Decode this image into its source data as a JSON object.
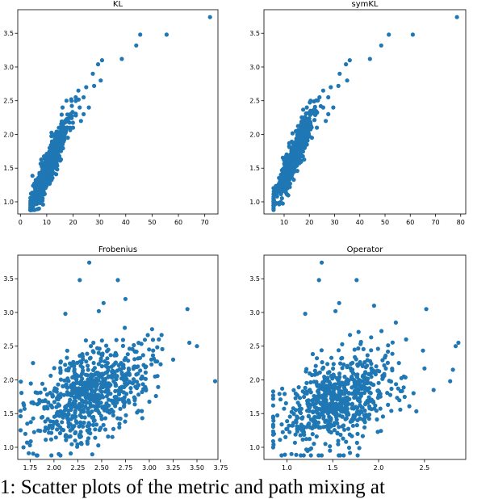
{
  "caption": "1: Scatter plots of the metric and path mixing at",
  "marker_color": "#1f77b4",
  "chart_data": [
    {
      "type": "scatter",
      "title": "KL",
      "xlim": [
        -1,
        75
      ],
      "ylim": [
        0.82,
        3.85
      ],
      "xticks": [
        0,
        10,
        20,
        30,
        40,
        50,
        60,
        70
      ],
      "yticks": [
        1.0,
        1.5,
        2.0,
        2.5,
        3.0,
        3.5
      ],
      "xtick_labels": [
        "0",
        "10",
        "20",
        "30",
        "40",
        "50",
        "60",
        "70"
      ],
      "ytick_labels": [
        "1.0",
        "1.5",
        "2.0",
        "2.5",
        "3.0",
        "3.5"
      ],
      "points": [
        [
          72.0,
          3.74
        ],
        [
          55.5,
          3.48
        ],
        [
          45.5,
          3.48
        ],
        [
          44.0,
          3.32
        ],
        [
          38.5,
          3.12
        ],
        [
          31.0,
          3.1
        ],
        [
          29.5,
          3.04
        ],
        [
          27.5,
          2.9
        ],
        [
          30.5,
          2.8
        ],
        [
          28.0,
          2.72
        ],
        [
          25.0,
          2.7
        ],
        [
          24.0,
          2.55
        ],
        [
          22.0,
          2.65
        ],
        [
          22.5,
          2.4
        ],
        [
          23.0,
          2.2
        ],
        [
          19.0,
          2.3
        ],
        [
          20.0,
          2.1
        ],
        [
          17.5,
          2.5
        ],
        [
          16.0,
          2.4
        ],
        [
          18.0,
          1.95
        ],
        [
          16.0,
          2.05
        ],
        [
          24.0,
          2.3
        ],
        [
          21.0,
          2.55
        ],
        [
          26.0,
          2.4
        ]
      ],
      "cloud": {
        "seed": 11,
        "n": 650,
        "x_mean": 11.0,
        "x_sd": 3.6,
        "x_min": 3.8,
        "x_max": 24.0,
        "slope": 0.085,
        "intercept": 0.62,
        "noise_sd": 0.13,
        "y_min": 0.88,
        "y_max": 2.75
      }
    },
    {
      "type": "scatter",
      "title": "symKL",
      "xlim": [
        2,
        82
      ],
      "ylim": [
        0.82,
        3.85
      ],
      "xticks": [
        10,
        20,
        30,
        40,
        50,
        60,
        70,
        80
      ],
      "yticks": [
        1.0,
        1.5,
        2.0,
        2.5,
        3.0,
        3.5
      ],
      "xtick_labels": [
        "10",
        "20",
        "30",
        "40",
        "50",
        "60",
        "70",
        "80"
      ],
      "ytick_labels": [
        "1.0",
        "1.5",
        "2.0",
        "2.5",
        "3.0",
        "3.5"
      ],
      "points": [
        [
          78.5,
          3.74
        ],
        [
          61.0,
          3.48
        ],
        [
          51.5,
          3.48
        ],
        [
          48.5,
          3.32
        ],
        [
          44.0,
          3.12
        ],
        [
          36.0,
          3.1
        ],
        [
          34.5,
          3.04
        ],
        [
          32.0,
          2.9
        ],
        [
          35.0,
          2.8
        ],
        [
          31.5,
          2.72
        ],
        [
          28.5,
          2.7
        ],
        [
          27.5,
          2.55
        ],
        [
          25.5,
          2.65
        ],
        [
          25.5,
          2.4
        ],
        [
          26.5,
          2.2
        ],
        [
          22.5,
          2.3
        ],
        [
          23.0,
          2.1
        ],
        [
          20.5,
          2.5
        ],
        [
          19.0,
          2.4
        ],
        [
          21.0,
          1.95
        ],
        [
          19.0,
          2.05
        ],
        [
          27.5,
          2.3
        ],
        [
          24.0,
          2.55
        ],
        [
          29.5,
          2.4
        ]
      ],
      "cloud": {
        "seed": 23,
        "n": 650,
        "x_mean": 13.5,
        "x_sd": 3.8,
        "x_min": 5.8,
        "x_max": 27.0,
        "slope": 0.08,
        "intercept": 0.55,
        "noise_sd": 0.13,
        "y_min": 0.88,
        "y_max": 2.75
      }
    },
    {
      "type": "scatter",
      "title": "Frobenius",
      "xlim": [
        1.62,
        3.72
      ],
      "ylim": [
        0.82,
        3.85
      ],
      "xticks": [
        1.75,
        2.0,
        2.25,
        2.5,
        2.75,
        3.0,
        3.25,
        3.5,
        3.75
      ],
      "yticks": [
        1.0,
        1.5,
        2.0,
        2.5,
        3.0,
        3.5
      ],
      "xtick_labels": [
        "1.75",
        "2.00",
        "2.25",
        "2.50",
        "2.75",
        "3.00",
        "3.25",
        "3.50",
        "3.75"
      ],
      "ytick_labels": [
        "1.0",
        "1.5",
        "2.0",
        "2.5",
        "3.0",
        "3.5"
      ],
      "points": [
        [
          2.37,
          3.74
        ],
        [
          2.27,
          3.48
        ],
        [
          2.67,
          3.48
        ],
        [
          2.12,
          2.98
        ],
        [
          2.52,
          3.14
        ],
        [
          2.47,
          3.02
        ],
        [
          3.4,
          3.05
        ],
        [
          3.42,
          2.55
        ],
        [
          3.5,
          2.5
        ],
        [
          3.69,
          1.98
        ],
        [
          3.25,
          2.3
        ],
        [
          2.05,
          0.9
        ],
        [
          2.29,
          1.05
        ],
        [
          1.68,
          1.0
        ],
        [
          1.7,
          1.2
        ],
        [
          1.72,
          1.35
        ],
        [
          2.75,
          3.2
        ],
        [
          3.1,
          2.6
        ],
        [
          1.78,
          2.25
        ]
      ],
      "cloud": {
        "seed": 37,
        "n": 700,
        "x_mean": 2.4,
        "x_sd": 0.3,
        "x_min": 1.65,
        "x_max": 3.3,
        "slope": 0.55,
        "intercept": 0.5,
        "noise_sd": 0.33,
        "y_min": 0.88,
        "y_max": 2.85
      }
    },
    {
      "type": "scatter",
      "title": "Operator",
      "xlim": [
        0.75,
        2.95
      ],
      "ylim": [
        0.82,
        3.85
      ],
      "xticks": [
        1.0,
        1.5,
        2.0,
        2.5
      ],
      "yticks": [
        1.0,
        1.5,
        2.0,
        2.5,
        3.0,
        3.5
      ],
      "xtick_labels": [
        "1.0",
        "1.5",
        "2.0",
        "2.5"
      ],
      "ytick_labels": [
        "1.0",
        "1.5",
        "2.0",
        "2.5",
        "3.0",
        "3.5"
      ],
      "points": [
        [
          1.38,
          3.74
        ],
        [
          1.35,
          3.48
        ],
        [
          1.76,
          3.48
        ],
        [
          1.2,
          2.98
        ],
        [
          1.57,
          3.14
        ],
        [
          1.53,
          3.02
        ],
        [
          2.52,
          3.05
        ],
        [
          2.87,
          2.55
        ],
        [
          2.84,
          2.5
        ],
        [
          2.78,
          1.98
        ],
        [
          2.81,
          2.15
        ],
        [
          1.05,
          0.9
        ],
        [
          1.42,
          1.05
        ],
        [
          0.85,
          1.0
        ],
        [
          0.86,
          1.2
        ],
        [
          1.1,
          1.4
        ],
        [
          1.95,
          3.1
        ],
        [
          2.3,
          2.6
        ],
        [
          2.6,
          1.85
        ]
      ],
      "cloud": {
        "seed": 53,
        "n": 700,
        "x_mean": 1.58,
        "x_sd": 0.33,
        "x_min": 0.85,
        "x_max": 2.55,
        "slope": 0.48,
        "intercept": 0.95,
        "noise_sd": 0.33,
        "y_min": 0.88,
        "y_max": 2.85
      }
    }
  ]
}
